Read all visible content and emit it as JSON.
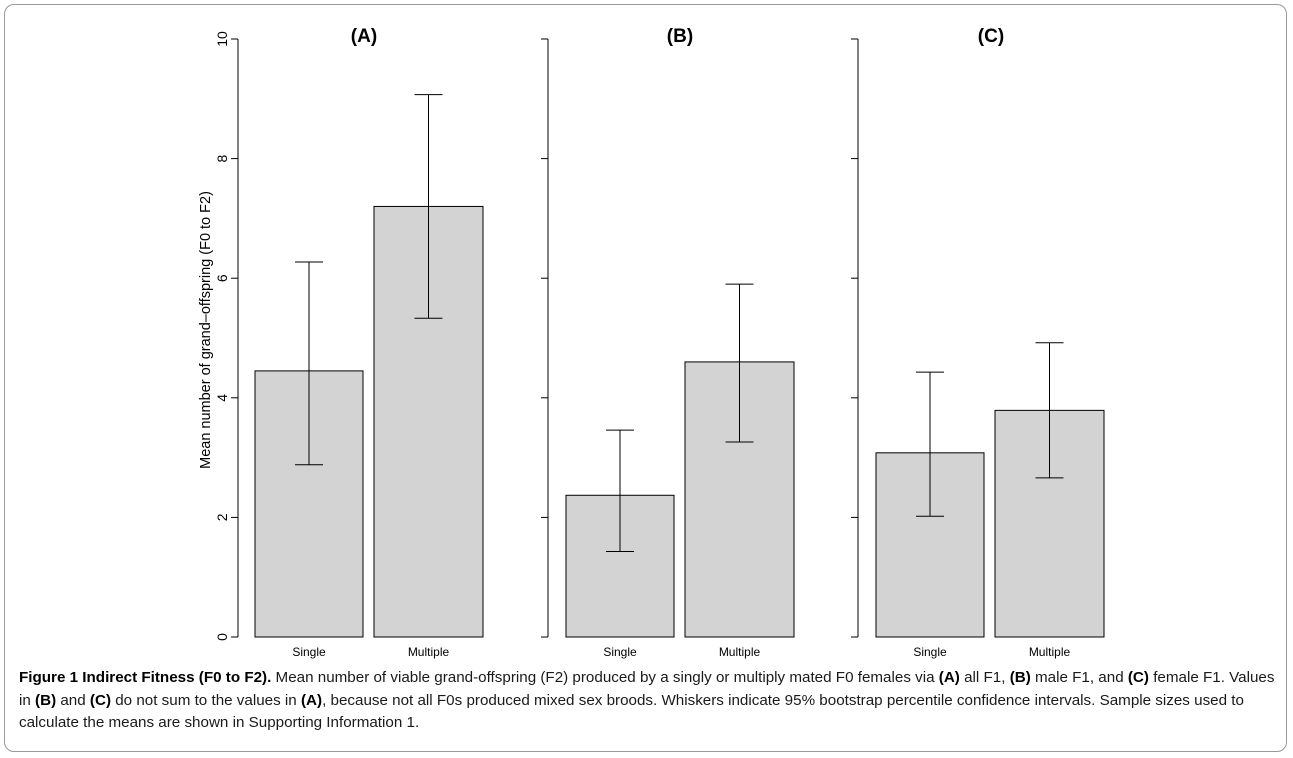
{
  "chart_data": {
    "type": "bar",
    "ylabel": "Mean number of grand–offspring (F0 to F2)",
    "xlabel": "",
    "ylim": [
      0,
      10
    ],
    "yticks": [
      "0",
      "2",
      "4",
      "6",
      "8",
      "10"
    ],
    "bar_color": "#d3d3d3",
    "panels": [
      {
        "title": "(A)",
        "categories": [
          "Single",
          "Multiple"
        ],
        "values": [
          4.45,
          7.2
        ],
        "ci_low": [
          2.88,
          5.33
        ],
        "ci_high": [
          6.27,
          9.07
        ]
      },
      {
        "title": "(B)",
        "categories": [
          "Single",
          "Multiple"
        ],
        "values": [
          2.37,
          4.6
        ],
        "ci_low": [
          1.43,
          3.26
        ],
        "ci_high": [
          3.46,
          5.9
        ]
      },
      {
        "title": "(C)",
        "categories": [
          "Single",
          "Multiple"
        ],
        "values": [
          3.08,
          3.79
        ],
        "ci_low": [
          2.02,
          2.66
        ],
        "ci_high": [
          4.43,
          4.92
        ]
      }
    ]
  },
  "caption": {
    "fig_label": "Figure 1 Indirect Fitness (F0 to F2).",
    "text1": " Mean number of viable grand-offspring (F2) produced by a singly or multiply mated F0 females via ",
    "tagA1": "(A)",
    "text2": " all F1, ",
    "tagB1": "(B)",
    "text3": " male F1, and ",
    "tagC1": "(C)",
    "text4": " female F1. Values in ",
    "tagB2": "(B)",
    "text5": " and ",
    "tagC2": "(C)",
    "text6": " do not sum to the values in ",
    "tagA2": "(A)",
    "text7": ", because not all F0s produced mixed sex broods. Whiskers indicate 95% bootstrap percentile confidence intervals. Sample sizes used to calculate the means are shown in Supporting Information 1."
  }
}
